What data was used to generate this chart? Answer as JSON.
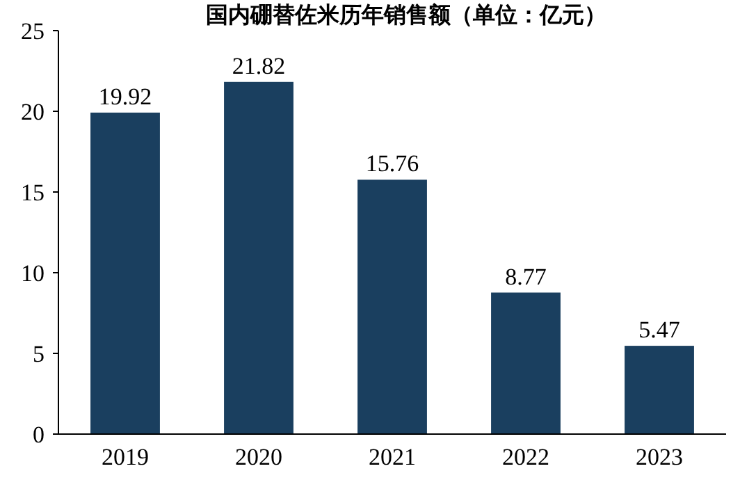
{
  "chart_data": {
    "type": "bar",
    "title": "国内硼替佐米历年销售额（单位：亿元）",
    "categories": [
      "2019",
      "2020",
      "2021",
      "2022",
      "2023"
    ],
    "values": [
      19.92,
      21.82,
      15.76,
      8.77,
      5.47
    ],
    "color": "#1a3f5f",
    "ylim": [
      0,
      25
    ],
    "yticks": [
      0,
      5,
      10,
      15,
      20,
      25
    ],
    "data_labels": true
  }
}
